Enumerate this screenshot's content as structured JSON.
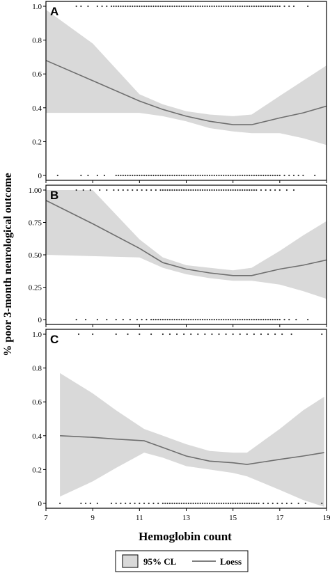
{
  "figure": {
    "ylabel": "% poor 3-month neurological outcome",
    "xlabel": "Hemoglobin count",
    "legend": {
      "band_label": "95% CL",
      "line_label": "Loess"
    },
    "colors": {
      "band": "#d9d9d9",
      "line": "#6e6e6e",
      "points": "#333333"
    }
  },
  "chart_data": [
    {
      "type": "line",
      "panel": "A",
      "xlim": [
        7,
        19
      ],
      "ylim": [
        0,
        1
      ],
      "xticks": [
        7,
        9,
        11,
        13,
        15,
        17,
        19
      ],
      "yticks": [
        0,
        0.2,
        0.4,
        0.6,
        0.8,
        1.0
      ],
      "ytick_labels": [
        "0",
        "0.2",
        "0.4",
        "0.6",
        "0.8",
        "1.0"
      ],
      "loess": {
        "x": [
          7.0,
          9.0,
          11.0,
          12.0,
          13.0,
          14.0,
          15.0,
          15.8,
          17.0,
          18.0,
          19.0
        ],
        "y": [
          0.68,
          0.56,
          0.44,
          0.39,
          0.35,
          0.32,
          0.3,
          0.3,
          0.34,
          0.37,
          0.41
        ]
      },
      "ci_upper": [
        0.98,
        0.78,
        0.48,
        0.42,
        0.38,
        0.36,
        0.35,
        0.36,
        0.47,
        0.56,
        0.65
      ],
      "ci_lower": [
        0.37,
        0.37,
        0.37,
        0.35,
        0.32,
        0.28,
        0.26,
        0.25,
        0.25,
        0.22,
        0.18
      ],
      "outcome_1_x": [
        8.3,
        8.5,
        8.8,
        9.2,
        9.4,
        9.6,
        9.8,
        9.9,
        10.0,
        10.1,
        10.2,
        10.3,
        10.4,
        10.5,
        10.6,
        10.7,
        10.8,
        10.9,
        11.0,
        11.1,
        11.2,
        11.3,
        11.4,
        11.5,
        11.6,
        11.7,
        11.8,
        11.9,
        12.0,
        12.1,
        12.2,
        12.3,
        12.4,
        12.5,
        12.6,
        12.7,
        12.8,
        12.9,
        13.0,
        13.1,
        13.2,
        13.3,
        13.4,
        13.5,
        13.6,
        13.7,
        13.8,
        13.9,
        14.0,
        14.1,
        14.2,
        14.3,
        14.4,
        14.5,
        14.6,
        14.7,
        14.8,
        14.9,
        15.0,
        15.1,
        15.2,
        15.3,
        15.4,
        15.5,
        15.6,
        15.7,
        15.8,
        15.9,
        16.0,
        16.1,
        16.2,
        16.3,
        16.4,
        16.5,
        16.6,
        16.7,
        16.8,
        16.9,
        17.0,
        17.2,
        17.4,
        17.6,
        18.2
      ],
      "outcome_0_x": [
        7.5,
        8.5,
        8.8,
        9.2,
        9.5,
        10.0,
        10.1,
        10.2,
        10.3,
        10.4,
        10.5,
        10.6,
        10.7,
        10.8,
        10.9,
        11.0,
        11.1,
        11.2,
        11.3,
        11.4,
        11.5,
        11.6,
        11.7,
        11.8,
        11.9,
        12.0,
        12.1,
        12.2,
        12.3,
        12.4,
        12.5,
        12.6,
        12.7,
        12.8,
        12.9,
        13.0,
        13.1,
        13.2,
        13.3,
        13.4,
        13.5,
        13.6,
        13.7,
        13.8,
        13.9,
        14.0,
        14.1,
        14.2,
        14.3,
        14.4,
        14.5,
        14.6,
        14.7,
        14.8,
        14.9,
        15.0,
        15.1,
        15.2,
        15.3,
        15.4,
        15.5,
        15.6,
        15.7,
        15.8,
        15.9,
        16.0,
        16.1,
        16.2,
        16.3,
        16.4,
        16.5,
        16.6,
        16.7,
        16.8,
        16.9,
        17.0,
        17.2,
        17.4,
        17.6,
        17.8,
        18.0,
        18.5
      ]
    },
    {
      "type": "line",
      "panel": "B",
      "xlim": [
        7,
        19
      ],
      "ylim": [
        0,
        1
      ],
      "xticks": [
        7,
        9,
        11,
        13,
        15,
        17,
        19
      ],
      "yticks": [
        0,
        0.25,
        0.5,
        0.75,
        1.0
      ],
      "ytick_labels": [
        "0",
        "0.25",
        "0.50",
        "0.75",
        "1.00"
      ],
      "loess": {
        "x": [
          7.0,
          9.0,
          11.0,
          12.0,
          13.0,
          14.0,
          15.0,
          15.8,
          17.0,
          18.0,
          19.0
        ],
        "y": [
          0.92,
          0.74,
          0.55,
          0.44,
          0.39,
          0.36,
          0.34,
          0.34,
          0.39,
          0.42,
          0.46
        ]
      },
      "ci_upper": [
        1.0,
        1.0,
        0.62,
        0.48,
        0.42,
        0.4,
        0.38,
        0.4,
        0.53,
        0.65,
        0.76
      ],
      "ci_lower": [
        0.5,
        0.49,
        0.48,
        0.4,
        0.35,
        0.32,
        0.3,
        0.3,
        0.27,
        0.22,
        0.16
      ],
      "outcome_1_x": [
        8.3,
        8.6,
        8.9,
        9.3,
        9.6,
        9.9,
        10.1,
        10.3,
        10.5,
        10.7,
        10.9,
        11.1,
        11.3,
        11.5,
        11.7,
        11.9,
        12.0,
        12.1,
        12.2,
        12.3,
        12.4,
        12.5,
        12.6,
        12.7,
        12.8,
        12.9,
        13.0,
        13.1,
        13.2,
        13.3,
        13.4,
        13.5,
        13.6,
        13.7,
        13.8,
        13.9,
        14.0,
        14.1,
        14.2,
        14.3,
        14.4,
        14.5,
        14.6,
        14.7,
        14.8,
        14.9,
        15.0,
        15.1,
        15.2,
        15.3,
        15.4,
        15.5,
        15.6,
        15.7,
        15.8,
        15.9,
        16.0,
        16.2,
        16.4,
        16.6,
        16.8,
        17.0,
        17.3,
        17.6
      ],
      "outcome_0_x": [
        8.3,
        8.7,
        9.2,
        9.6,
        10.0,
        10.3,
        10.6,
        10.9,
        11.1,
        11.3,
        11.5,
        11.6,
        11.7,
        11.8,
        11.9,
        12.0,
        12.1,
        12.2,
        12.3,
        12.4,
        12.5,
        12.6,
        12.7,
        12.8,
        12.9,
        13.0,
        13.1,
        13.2,
        13.3,
        13.4,
        13.5,
        13.6,
        13.7,
        13.8,
        13.9,
        14.0,
        14.1,
        14.2,
        14.3,
        14.4,
        14.5,
        14.6,
        14.7,
        14.8,
        14.9,
        15.0,
        15.1,
        15.2,
        15.3,
        15.4,
        15.5,
        15.6,
        15.7,
        15.8,
        15.9,
        16.0,
        16.1,
        16.2,
        16.3,
        16.4,
        16.5,
        16.6,
        16.7,
        16.8,
        16.9,
        17.0,
        17.2,
        17.4,
        17.7,
        18.2
      ]
    },
    {
      "type": "line",
      "panel": "C",
      "xlim": [
        7,
        19
      ],
      "ylim": [
        0,
        1
      ],
      "xticks": [
        7,
        9,
        11,
        13,
        15,
        17,
        19
      ],
      "xtick_labels": [
        "7",
        "9",
        "11",
        "13",
        "15",
        "17",
        "19"
      ],
      "yticks": [
        0,
        0.2,
        0.4,
        0.6,
        0.8,
        1.0
      ],
      "ytick_labels": [
        "0",
        "0.2",
        "0.4",
        "0.6",
        "0.8",
        "1.0"
      ],
      "loess": {
        "x": [
          7.6,
          9.0,
          10.0,
          11.2,
          12.0,
          13.0,
          14.0,
          15.0,
          15.6,
          17.0,
          18.0,
          18.9
        ],
        "y": [
          0.4,
          0.39,
          0.38,
          0.37,
          0.33,
          0.28,
          0.25,
          0.24,
          0.23,
          0.26,
          0.28,
          0.3
        ]
      },
      "ci_upper": [
        0.77,
        0.65,
        0.55,
        0.44,
        0.4,
        0.35,
        0.31,
        0.3,
        0.3,
        0.44,
        0.55,
        0.63
      ],
      "ci_lower": [
        0.04,
        0.13,
        0.21,
        0.3,
        0.27,
        0.22,
        0.2,
        0.18,
        0.16,
        0.08,
        0.02,
        -0.02
      ],
      "outcome_1_x": [
        8.4,
        9.0,
        10.0,
        10.5,
        11.0,
        11.5,
        12.0,
        12.3,
        12.6,
        12.9,
        13.2,
        13.5,
        13.8,
        14.1,
        14.4,
        14.7,
        15.0,
        15.3,
        15.6,
        15.9,
        16.2,
        16.5,
        16.8,
        17.1,
        17.5,
        18.8
      ],
      "outcome_0_x": [
        7.6,
        8.5,
        8.7,
        8.9,
        9.2,
        9.8,
        10.0,
        10.2,
        10.4,
        10.6,
        10.8,
        11.0,
        11.2,
        11.4,
        11.6,
        11.8,
        12.0,
        12.1,
        12.2,
        12.3,
        12.4,
        12.5,
        12.6,
        12.7,
        12.8,
        12.9,
        13.0,
        13.1,
        13.2,
        13.3,
        13.4,
        13.5,
        13.6,
        13.7,
        13.8,
        13.9,
        14.0,
        14.1,
        14.2,
        14.3,
        14.4,
        14.5,
        14.6,
        14.7,
        14.8,
        14.9,
        15.0,
        15.1,
        15.2,
        15.3,
        15.4,
        15.5,
        15.6,
        15.7,
        15.8,
        15.9,
        16.0,
        16.1,
        16.3,
        16.5,
        16.7,
        16.9,
        17.1,
        17.3,
        17.5,
        17.8,
        18.1,
        18.8
      ]
    }
  ]
}
